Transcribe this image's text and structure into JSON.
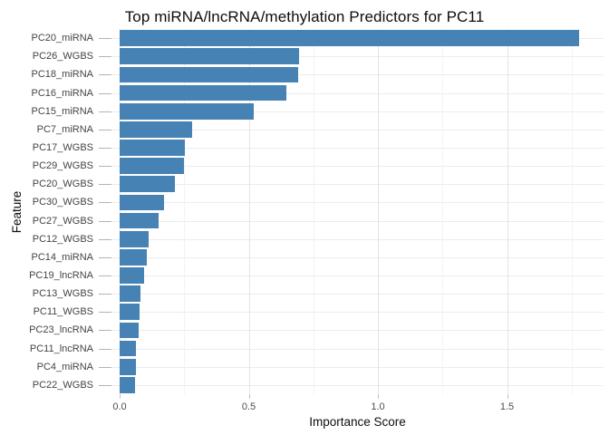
{
  "chart_data": {
    "type": "bar",
    "orientation": "horizontal",
    "title": "Top miRNA/lncRNA/methylation Predictors for PC11",
    "xlabel": "Importance Score",
    "ylabel": "Feature",
    "categories": [
      "PC20_miRNA",
      "PC26_WGBS",
      "PC18_miRNA",
      "PC16_miRNA",
      "PC15_miRNA",
      "PC7_miRNA",
      "PC17_WGBS",
      "PC29_WGBS",
      "PC20_WGBS",
      "PC30_WGBS",
      "PC27_WGBS",
      "PC12_WGBS",
      "PC14_miRNA",
      "PC19_lncRNA",
      "PC13_WGBS",
      "PC11_WGBS",
      "PC23_lncRNA",
      "PC11_lncRNA",
      "PC4_miRNA",
      "PC22_WGBS"
    ],
    "values": [
      1.78,
      0.695,
      0.69,
      0.645,
      0.52,
      0.28,
      0.253,
      0.248,
      0.213,
      0.171,
      0.151,
      0.113,
      0.104,
      0.094,
      0.079,
      0.078,
      0.075,
      0.063,
      0.062,
      0.058
    ],
    "xlim": [
      0,
      1.87
    ],
    "x_major_ticks": [
      0.0,
      0.5,
      1.0,
      1.5
    ],
    "x_tick_labels": [
      "0.0",
      "0.5",
      "1.0",
      "1.5"
    ],
    "x_minor_ticks": [
      0.25,
      0.75,
      1.25,
      1.75
    ],
    "bar_color": "#4682B4",
    "background_color": "#FFFFFF",
    "major_grid_color": "#E3E3E3",
    "minor_grid_color": "#F2F2F2",
    "horizontal_grid_color": "#ECECEC",
    "axis_text_color": "#4D4D4D",
    "title_color": "#0D0D0D",
    "grid": "major+minor",
    "legend": "none"
  }
}
